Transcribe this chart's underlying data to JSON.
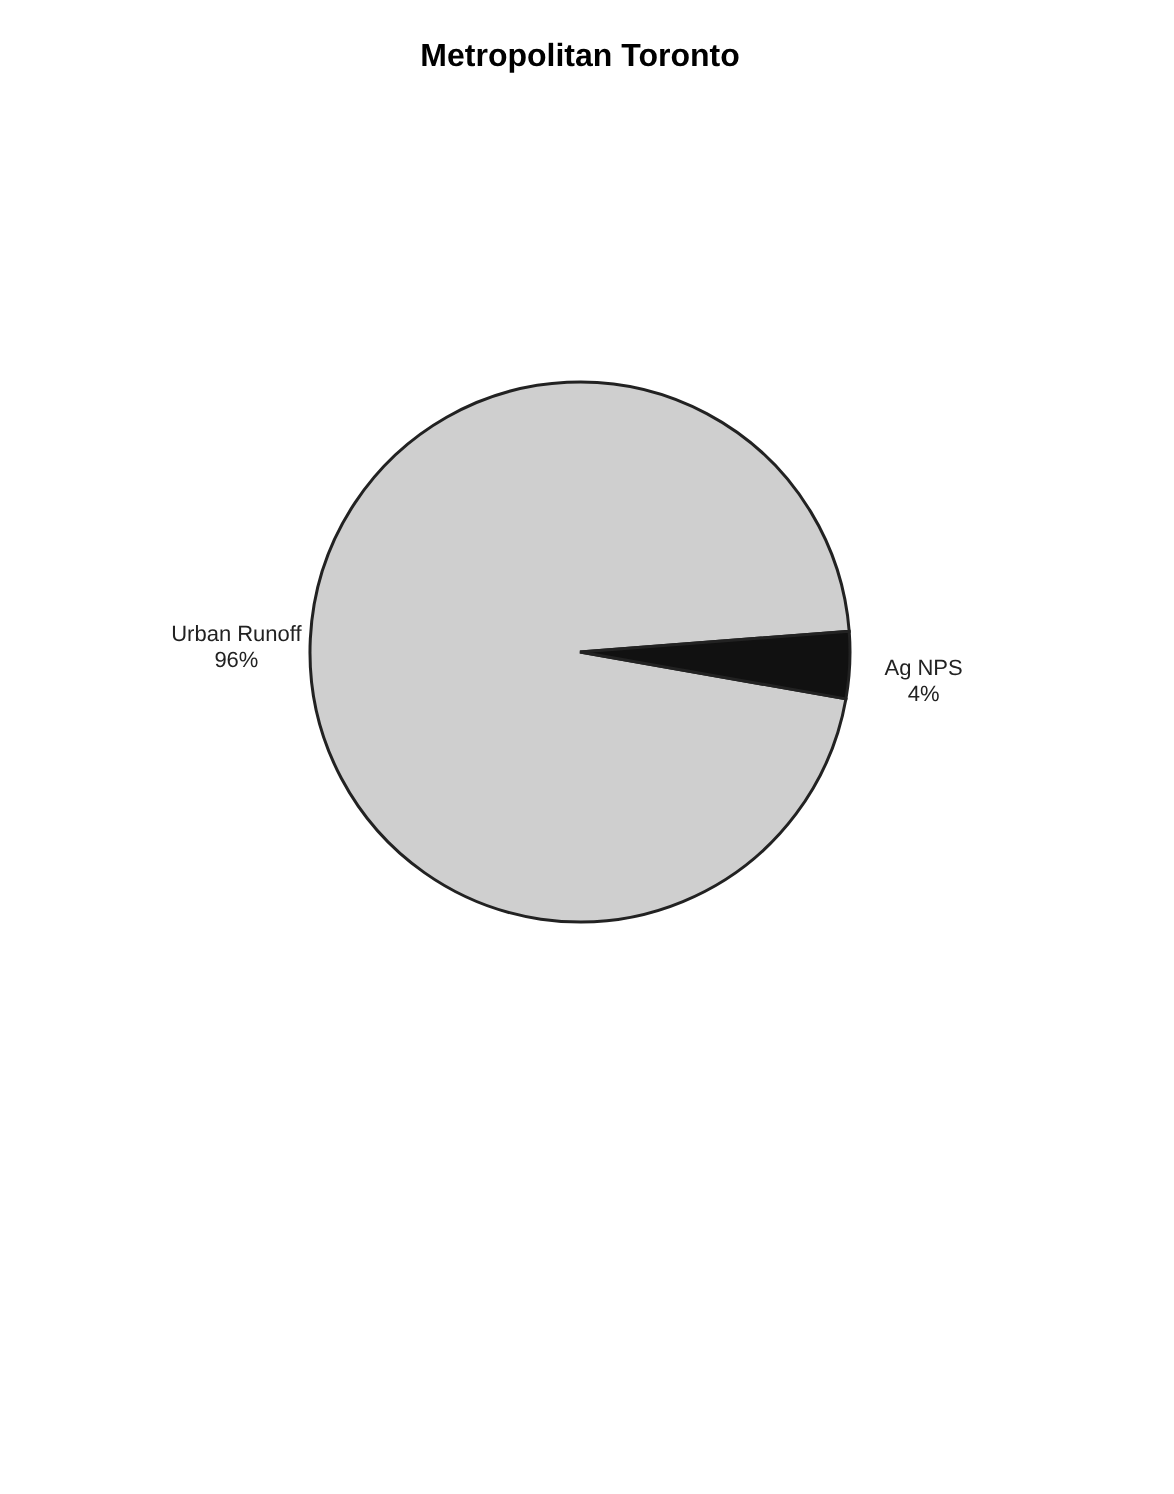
{
  "chart_data": {
    "type": "pie",
    "title": "Metropolitan Toronto",
    "categories": [
      "Urban Runoff",
      "Ag NPS"
    ],
    "values": [
      96,
      4
    ],
    "value_labels": [
      "96%",
      "4%"
    ],
    "colors": [
      "#cfcfcf",
      "#111111"
    ]
  }
}
